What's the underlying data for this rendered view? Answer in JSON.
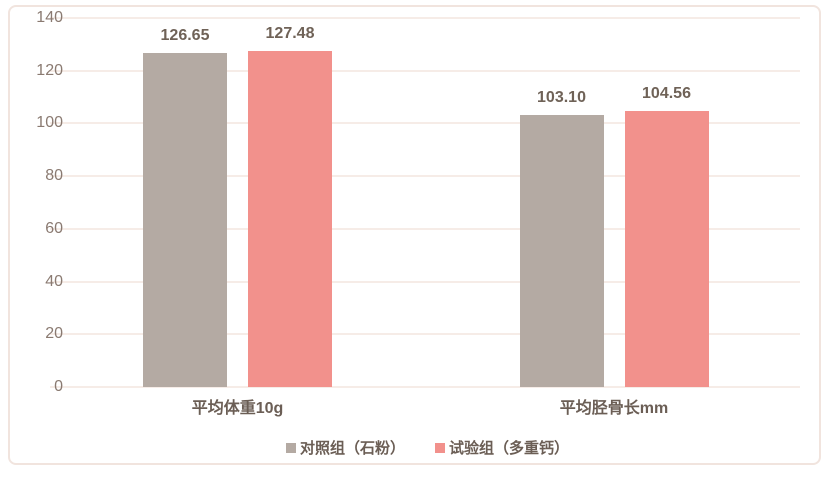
{
  "chart_data": {
    "type": "bar",
    "title": "",
    "categories": [
      "平均体重10g",
      "平均胫骨长mm"
    ],
    "series": [
      {
        "name": "对照组（石粉）",
        "color": "#b4aaa3",
        "values": [
          126.65,
          103.1
        ]
      },
      {
        "name": "试验组（多重钙）",
        "color": "#f2918c",
        "values": [
          127.48,
          104.56
        ]
      }
    ],
    "value_label_decimals": 2,
    "ylabel": "",
    "xlabel": "",
    "ylim": [
      0,
      140
    ],
    "yticks": [
      0,
      20,
      40,
      60,
      80,
      100,
      120,
      140
    ],
    "grid": true,
    "legend_position": "bottom"
  },
  "colors": {
    "panel_border": "#f1e4de",
    "gridline": "#f6ece7",
    "tick_text": "#8a7a71",
    "value_label_text": "#6f6257",
    "category_text": "#6b5e55",
    "background": "#ffffff"
  }
}
